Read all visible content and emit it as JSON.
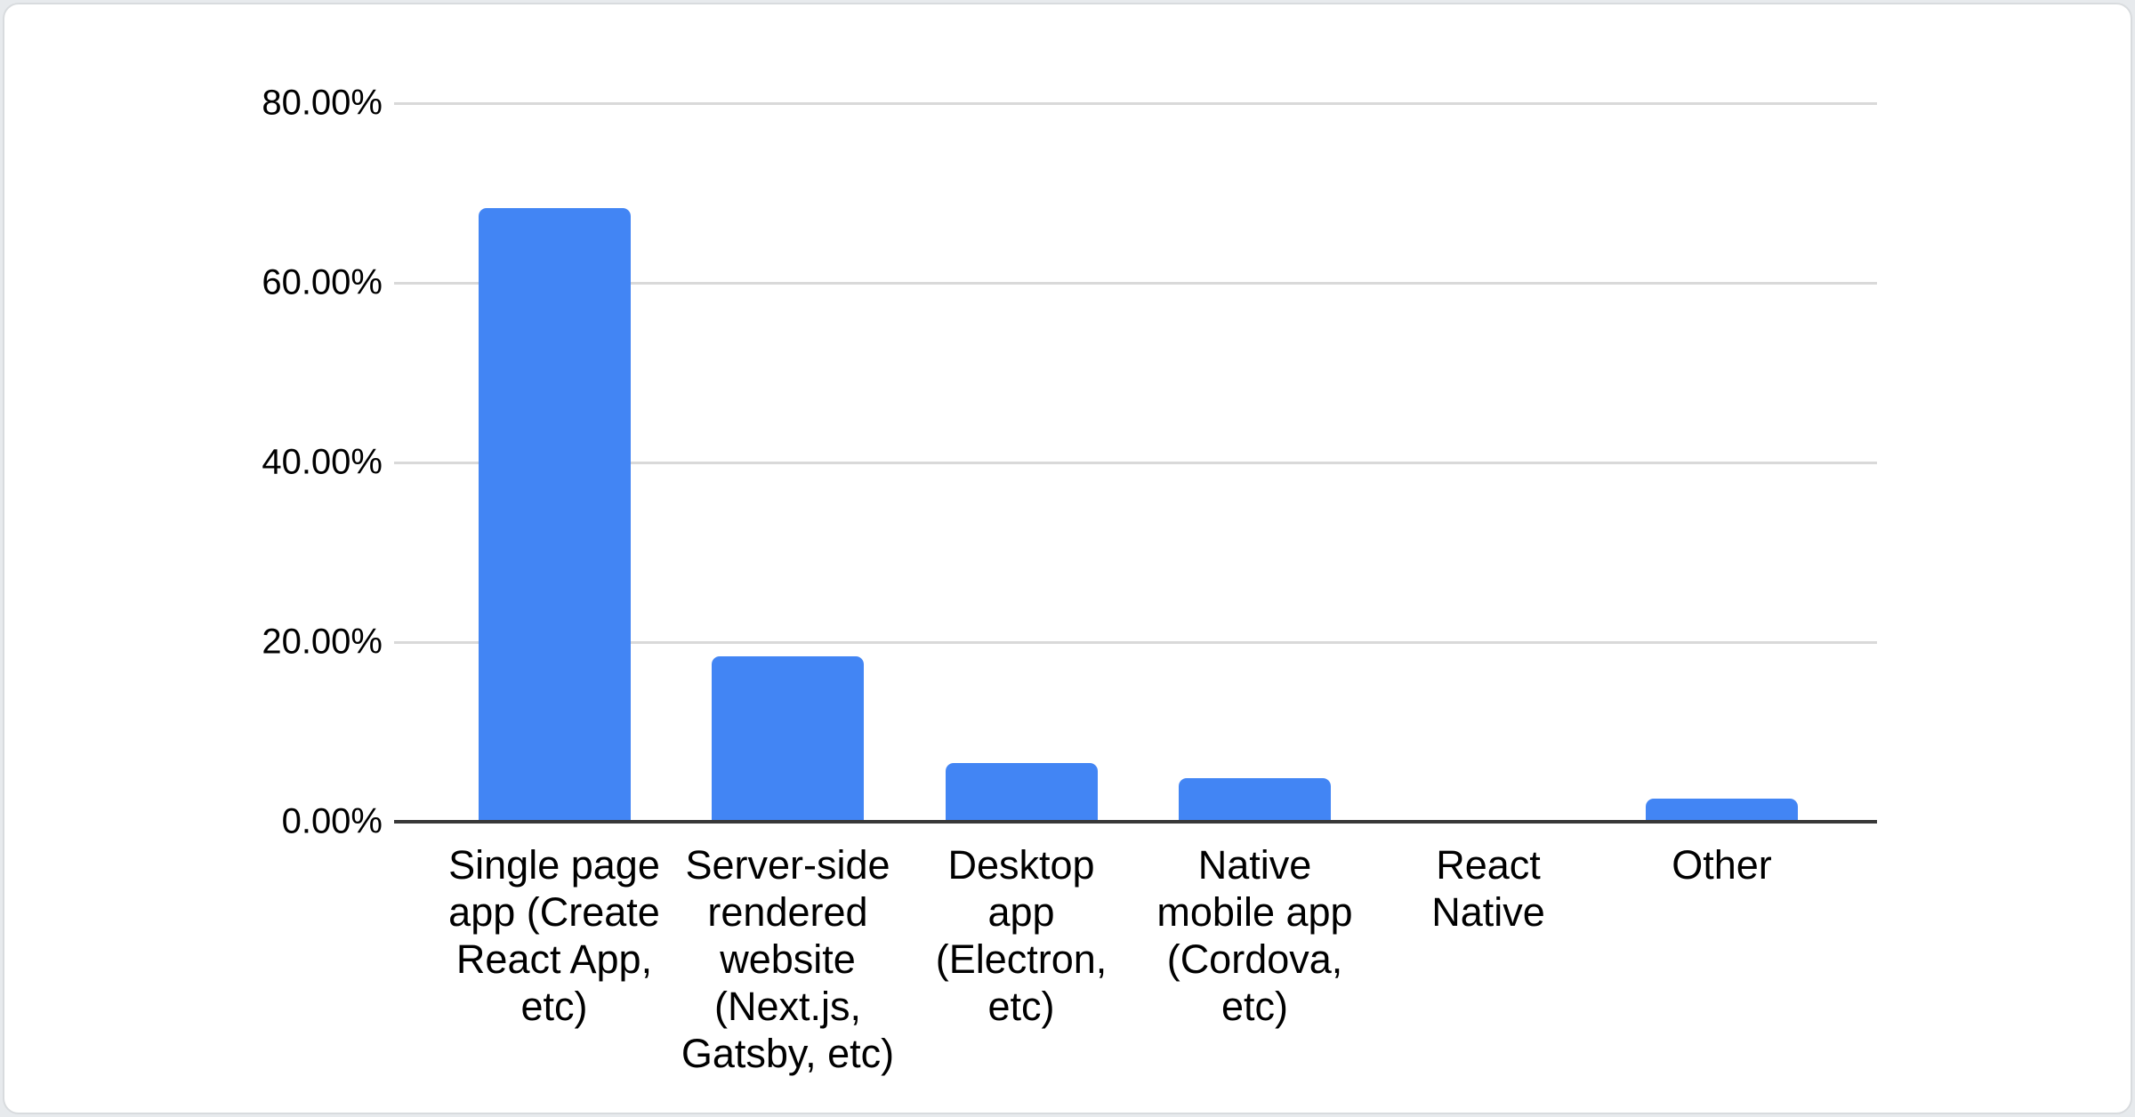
{
  "chart_data": {
    "type": "bar",
    "title": "",
    "categories": [
      "Single page app (Create React App, etc)",
      "Server-side rendered website (Next.js, Gatsby, etc)",
      "Desktop app (Electron, etc)",
      "Native mobile app (Cordova, etc)",
      "React Native",
      "Other"
    ],
    "category_display": [
      "Single page\napp (Create\nReact App,\netc)",
      "Server-side\nrendered\nwebsite\n(Next.js,\nGatsby, etc)",
      "Desktop\napp\n(Electron,\netc)",
      "Native\nmobile app\n(Cordova,\netc)",
      "React\nNative",
      "Other"
    ],
    "values": [
      68.3,
      18.4,
      6.5,
      4.9,
      0,
      2.6
    ],
    "unit": "%",
    "xlabel": "",
    "ylabel": "",
    "ylim": [
      0,
      80
    ],
    "y_ticks": [
      0,
      20,
      40,
      60,
      80
    ],
    "y_tick_labels": [
      "0.00%",
      "20.00%",
      "40.00%",
      "60.00%",
      "80.00%"
    ],
    "grid": true,
    "legend": "none",
    "colors": {
      "bar": "#4285f4",
      "gridline": "#d9d9d9",
      "axis_line": "#383838",
      "label_text": "#000000",
      "card_background": "#ffffff",
      "card_border": "#d8dbde",
      "page_background": "#e7eaed"
    }
  }
}
